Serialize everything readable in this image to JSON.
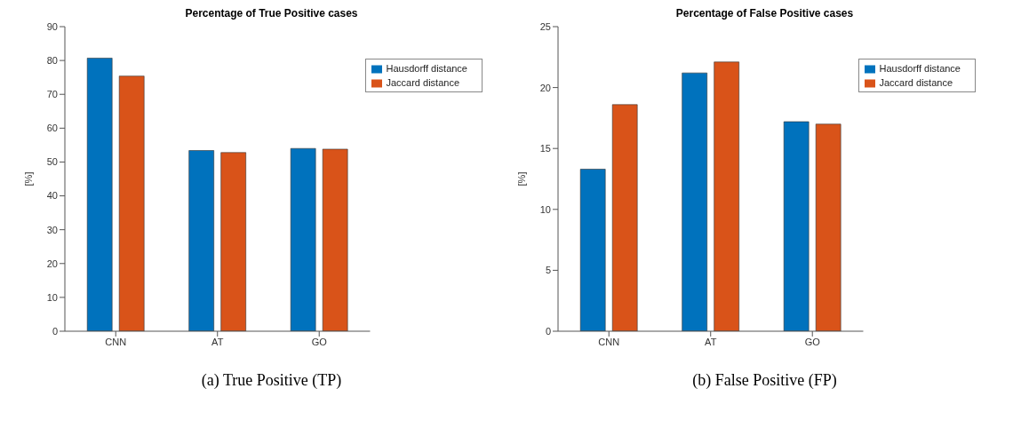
{
  "chart_data": [
    {
      "type": "bar",
      "title": "Percentage of True Positive cases",
      "ylabel": "[%]",
      "categories": [
        "CNN",
        "AT",
        "GO"
      ],
      "series": [
        {
          "name": "Hausdorff distance",
          "color": "#0072bd",
          "values": [
            80.7,
            53.4,
            54.0
          ]
        },
        {
          "name": "Jaccard distance",
          "color": "#d95319",
          "values": [
            75.4,
            52.8,
            53.8
          ]
        }
      ],
      "ylim": [
        0,
        90
      ],
      "yticks": [
        0,
        10,
        20,
        30,
        40,
        50,
        60,
        70,
        80,
        90
      ],
      "grid": false,
      "legend": "top right",
      "annotations": [
        "(a) True Positive (TP)"
      ]
    },
    {
      "type": "bar",
      "title": "Percentage of False Positive cases",
      "ylabel": "[%]",
      "categories": [
        "CNN",
        "AT",
        "GO"
      ],
      "series": [
        {
          "name": "Hausdorff distance",
          "color": "#0072bd",
          "values": [
            13.3,
            21.2,
            17.2
          ]
        },
        {
          "name": "Jaccard distance",
          "color": "#d95319",
          "values": [
            18.6,
            22.1,
            17.0
          ]
        }
      ],
      "ylim": [
        0,
        25
      ],
      "yticks": [
        0,
        5,
        10,
        15,
        20,
        25
      ],
      "grid": false,
      "legend": "top right",
      "annotations": [
        "(b) False Positive (FP)"
      ]
    }
  ]
}
